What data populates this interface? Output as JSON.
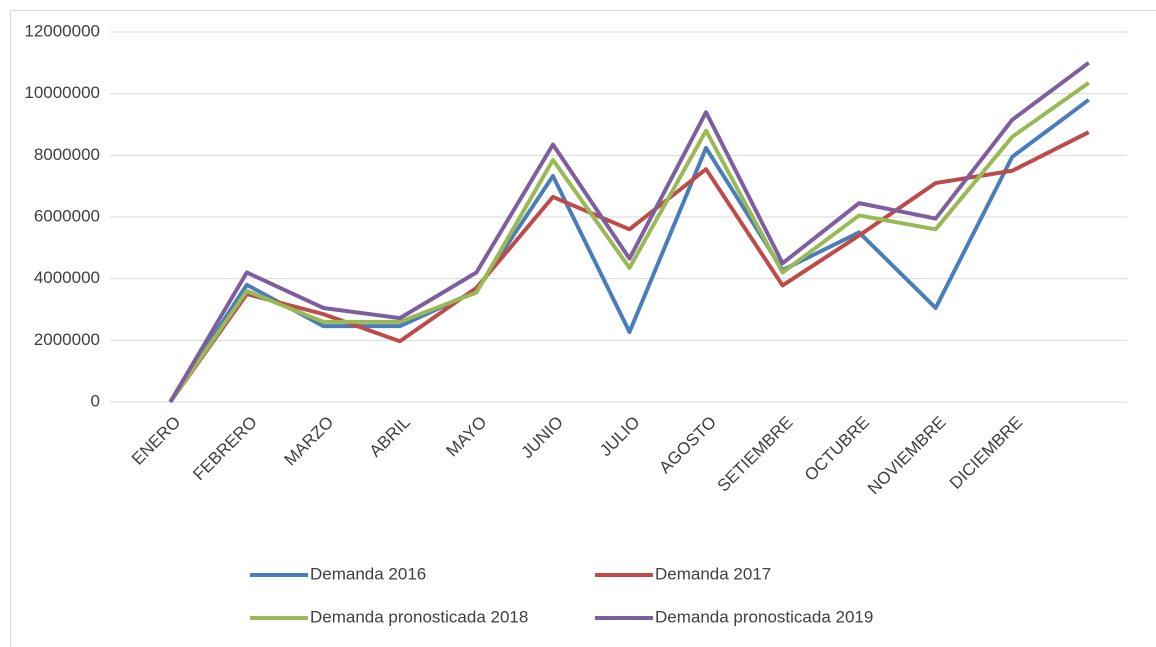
{
  "chart_data": {
    "type": "line",
    "categories": [
      "ENERO",
      "FEBRERO",
      "MARZO",
      "ABRIL",
      "MAYO",
      "JUNIO",
      "JULIO",
      "AGOSTO",
      "SETIEMBRE",
      "OCTUBRE",
      "NOVIEMBRE",
      "DICIEMBRE",
      null
    ],
    "series": [
      {
        "name": "Demanda 2016",
        "color": "#4a7ebb",
        "values": [
          0,
          3800000,
          2460000,
          2460000,
          3600000,
          7330000,
          2270000,
          8240000,
          4280000,
          5500000,
          3050000,
          7950000,
          9800000
        ]
      },
      {
        "name": "Demanda 2017",
        "color": "#be4b48",
        "values": [
          0,
          3500000,
          2850000,
          1970000,
          3700000,
          6650000,
          5600000,
          7550000,
          3780000,
          5400000,
          7100000,
          7500000,
          8750000
        ]
      },
      {
        "name": "Demanda pronosticada 2018",
        "color": "#98b954",
        "values": [
          0,
          3600000,
          2600000,
          2600000,
          3550000,
          7850000,
          4350000,
          8800000,
          4200000,
          6050000,
          5600000,
          8600000,
          10350000
        ]
      },
      {
        "name": "Demanda pronosticada 2019",
        "color": "#7d5fa0",
        "values": [
          0,
          4200000,
          3050000,
          2720000,
          4200000,
          8350000,
          4650000,
          9400000,
          4500000,
          6450000,
          5950000,
          9150000,
          11000000
        ]
      }
    ],
    "ylim": [
      0,
      12000000
    ],
    "yticks": [
      0,
      2000000,
      4000000,
      6000000,
      8000000,
      10000000,
      12000000
    ],
    "grid": true,
    "legend": "bottom"
  }
}
